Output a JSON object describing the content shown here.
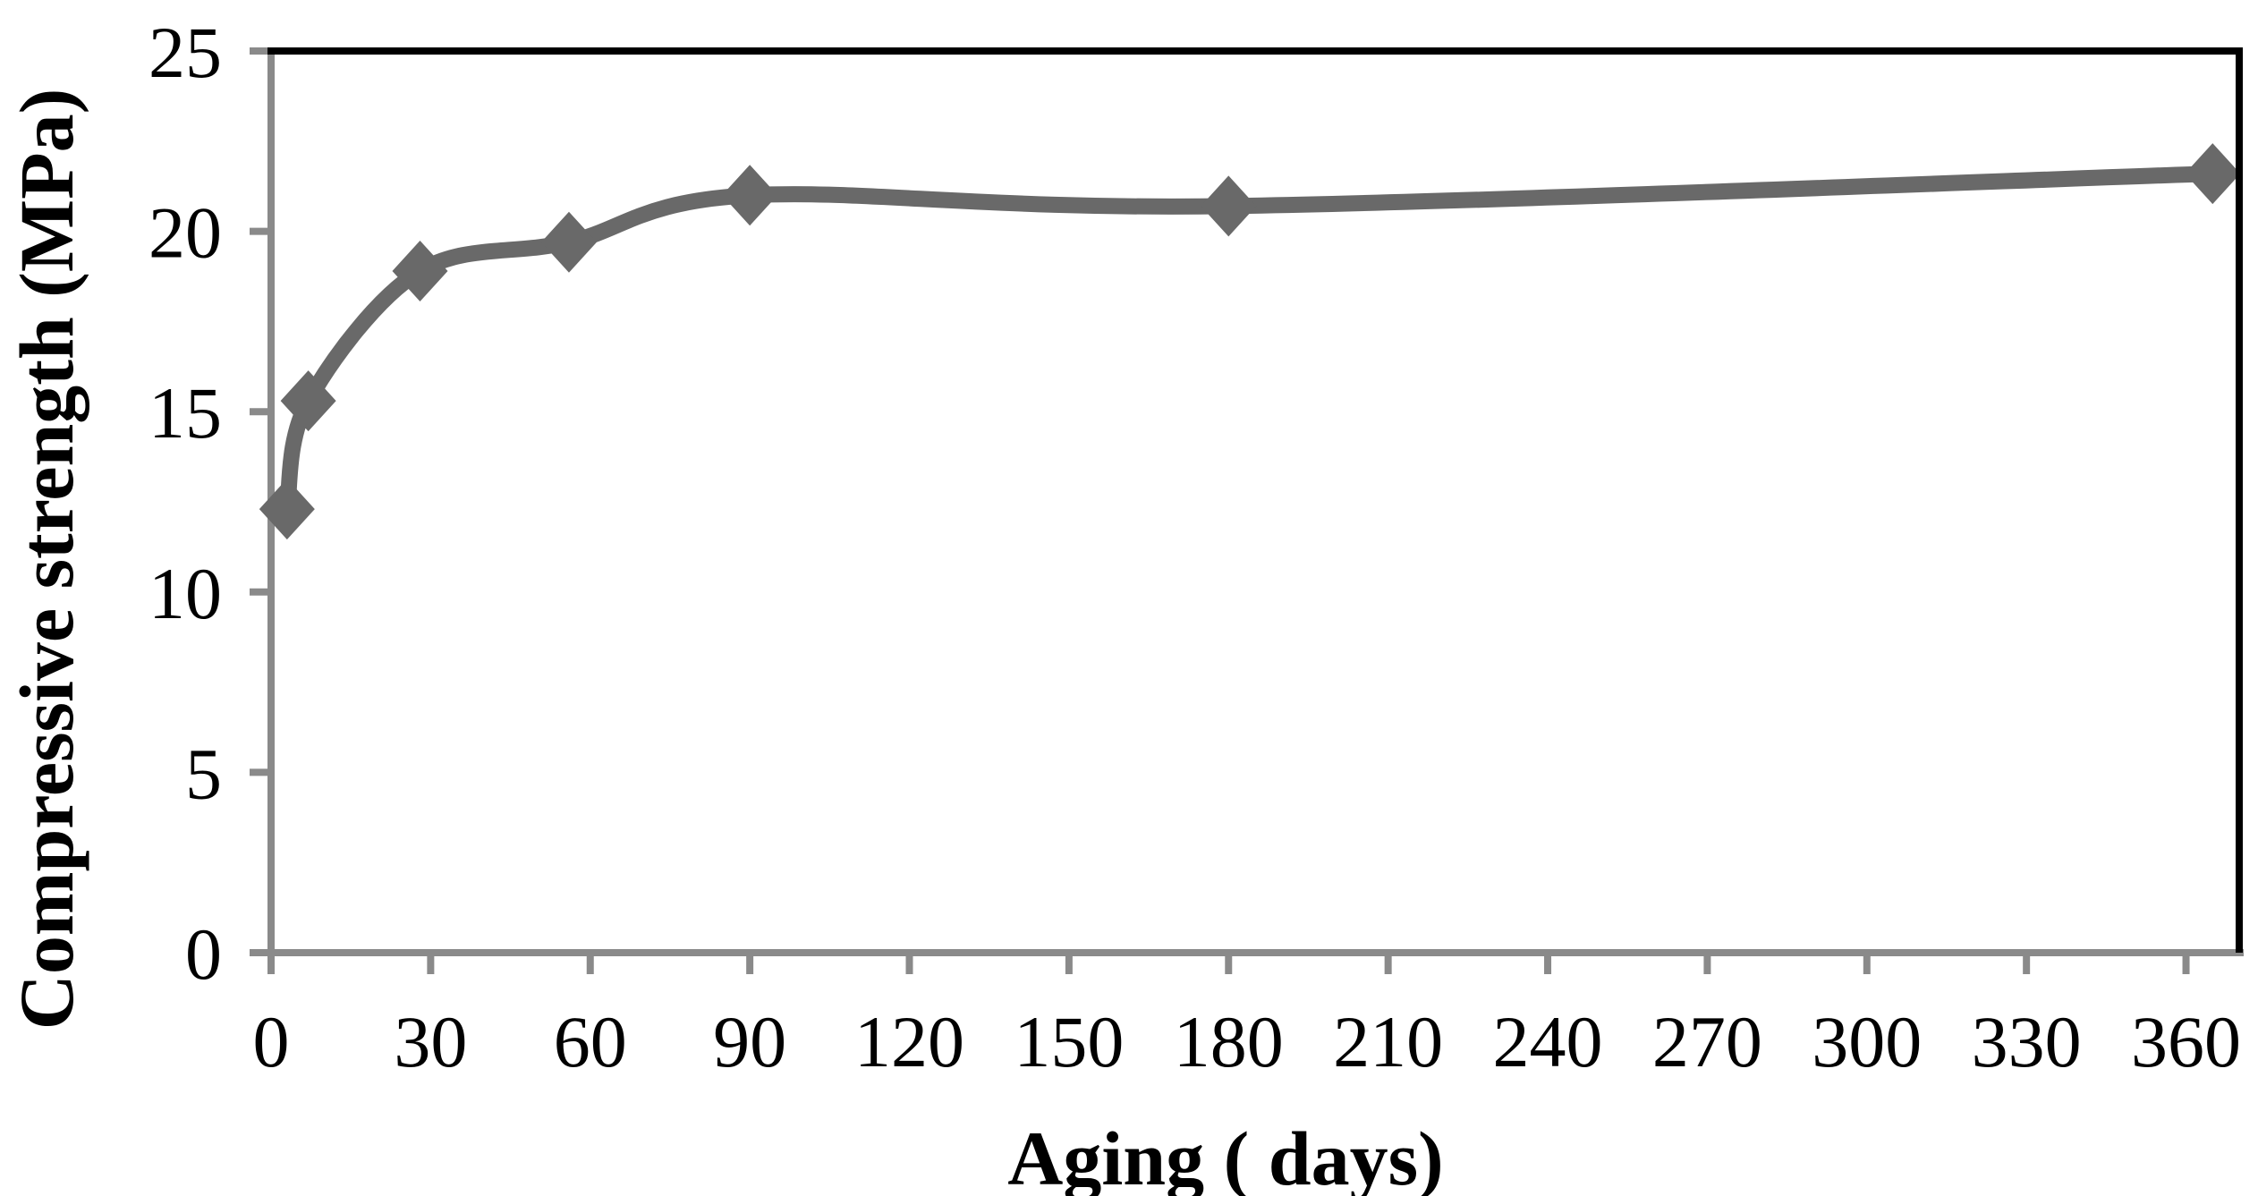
{
  "chart_data": {
    "type": "line",
    "title": "",
    "xlabel": "Aging ( days)",
    "ylabel": "Compressive strength (MPa)",
    "x": [
      3,
      7,
      28,
      56,
      90,
      180,
      365
    ],
    "y": [
      12.3,
      15.3,
      18.9,
      19.7,
      21.0,
      20.7,
      21.6
    ],
    "series_name": "Compressive strength",
    "x_ticks": [
      0,
      30,
      60,
      90,
      120,
      150,
      180,
      210,
      240,
      270,
      300,
      330,
      360
    ],
    "y_ticks": [
      0,
      5,
      10,
      15,
      20,
      25
    ],
    "xlim": [
      0,
      370
    ],
    "ylim": [
      0,
      25
    ],
    "grid": false,
    "legend": false,
    "marker": "diamond",
    "line_smooth": true
  },
  "colors": {
    "series": "#696969",
    "axis": "#8a8a8a",
    "frame": "#000000",
    "text": "#000000",
    "background": "#ffffff"
  }
}
